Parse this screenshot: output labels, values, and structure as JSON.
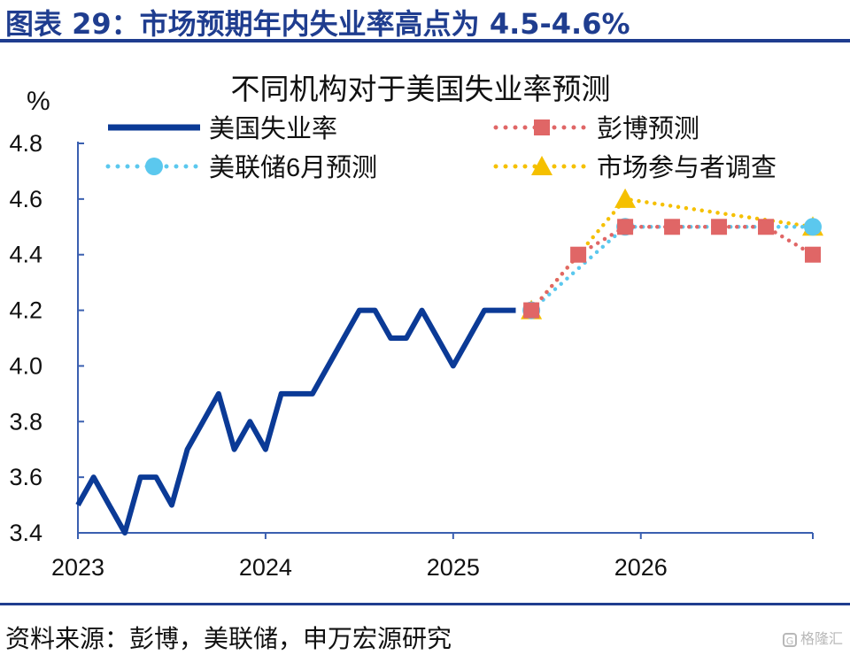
{
  "header": {
    "title": "图表 29：市场预期年内失业率高点为 4.5-4.6%"
  },
  "footer": {
    "source": "资料来源：彭博，美联储，申万宏源研究",
    "watermark": "格隆汇"
  },
  "chart_data": {
    "type": "line",
    "title": "不同机构对于美国失业率预测",
    "ylabel": "%",
    "xlabel": "",
    "x_ticks": [
      "2023",
      "2024",
      "2025",
      "2026"
    ],
    "y_ticks": [
      "3.4",
      "3.6",
      "3.8",
      "4.0",
      "4.2",
      "4.4",
      "4.6",
      "4.8"
    ],
    "ylim": [
      3.4,
      4.8
    ],
    "xlim": [
      "2023-01",
      "2026-12"
    ],
    "legend_position": "top",
    "series": [
      {
        "name": "美国失业率",
        "color": "#0b3a96",
        "style": "solid",
        "marker": "none",
        "x": [
          "2023-01",
          "2023-02",
          "2023-03",
          "2023-04",
          "2023-05",
          "2023-06",
          "2023-07",
          "2023-08",
          "2023-09",
          "2023-10",
          "2023-11",
          "2023-12",
          "2024-01",
          "2024-02",
          "2024-03",
          "2024-04",
          "2024-05",
          "2024-06",
          "2024-07",
          "2024-08",
          "2024-09",
          "2024-10",
          "2024-11",
          "2024-12",
          "2025-01",
          "2025-02",
          "2025-03",
          "2025-04",
          "2025-05"
        ],
        "y": [
          3.5,
          3.6,
          3.5,
          3.4,
          3.6,
          3.6,
          3.5,
          3.7,
          3.8,
          3.9,
          3.7,
          3.8,
          3.7,
          3.9,
          3.9,
          3.9,
          4.0,
          4.1,
          4.2,
          4.2,
          4.1,
          4.1,
          4.2,
          4.1,
          4.0,
          4.1,
          4.2,
          4.2,
          4.2
        ]
      },
      {
        "name": "彭博预测",
        "color": "#e06666",
        "style": "dotted",
        "marker": "square",
        "x": [
          "2025-06",
          "2025-09",
          "2025-12",
          "2026-03",
          "2026-06",
          "2026-09",
          "2026-12"
        ],
        "y": [
          4.2,
          4.4,
          4.5,
          4.5,
          4.5,
          4.5,
          4.4
        ]
      },
      {
        "name": "美联储6月预测",
        "color": "#5bc8ee",
        "style": "dotted",
        "marker": "circle",
        "x": [
          "2025-06",
          "2025-12",
          "2026-12"
        ],
        "y": [
          4.2,
          4.5,
          4.5
        ]
      },
      {
        "name": "市场参与者调查",
        "color": "#f5c000",
        "style": "dotted",
        "marker": "triangle",
        "x": [
          "2025-06",
          "2025-12",
          "2026-12"
        ],
        "y": [
          4.2,
          4.6,
          4.5
        ]
      }
    ]
  }
}
